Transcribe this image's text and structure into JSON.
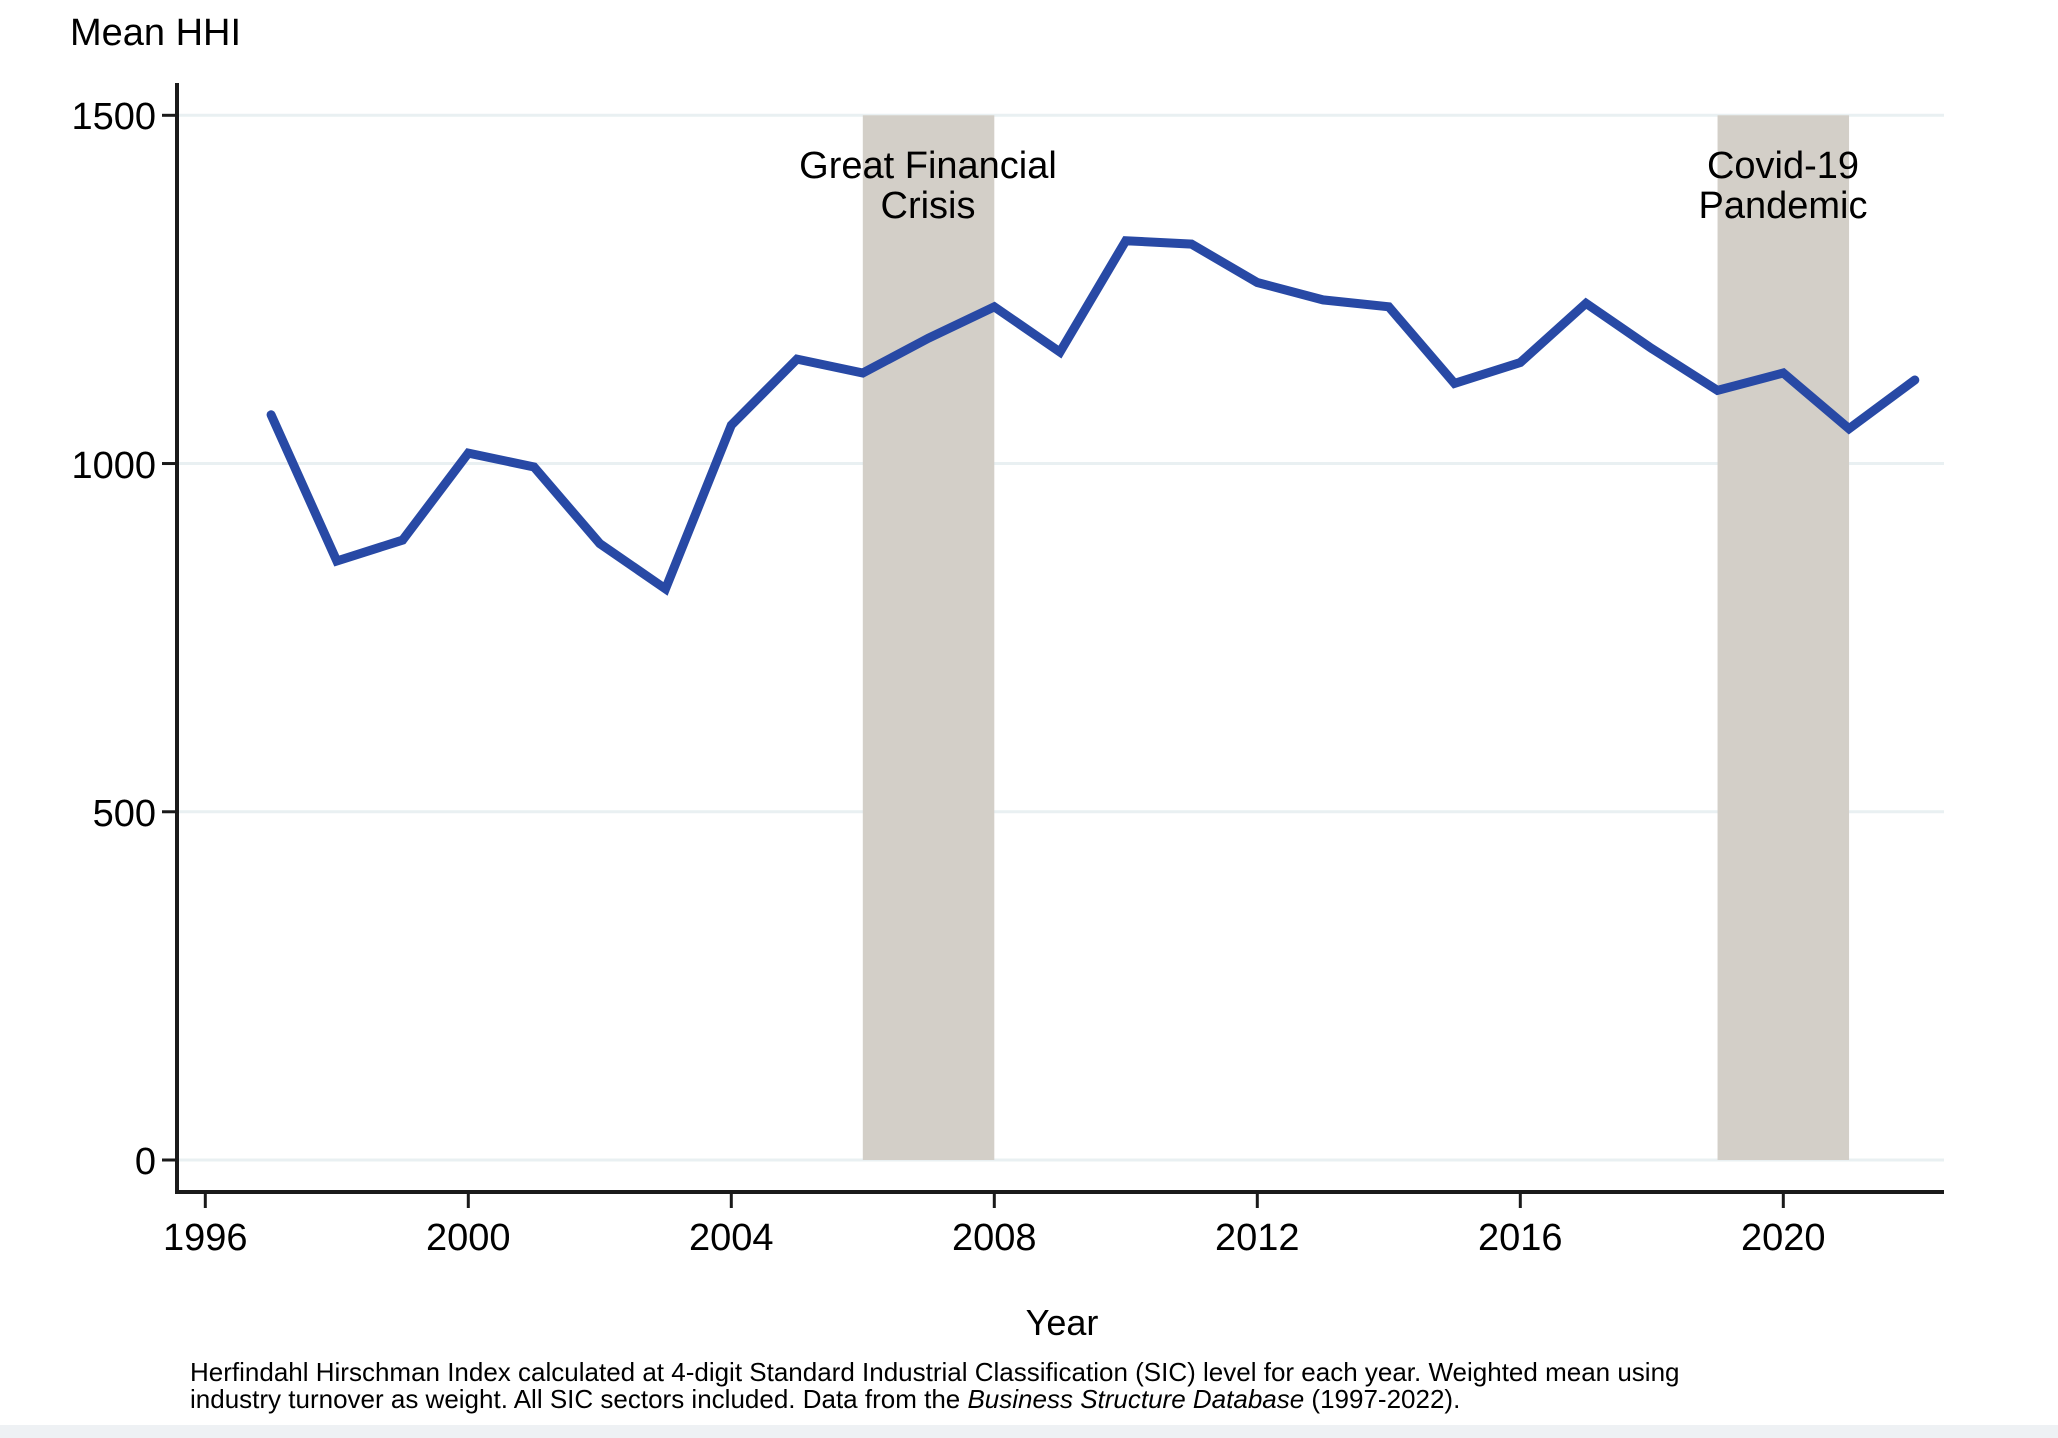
{
  "title": "Mean HHI",
  "axis": {
    "x_title": "Year"
  },
  "caption": {
    "line1": "Herfindahl Hirschman Index calculated at 4-digit Standard Industrial Classification (SIC) level for each year. Weighted mean using",
    "line2_pre": "industry turnover as weight. All SIC sectors included. Data from the ",
    "line2_italic": "Business Structure Database",
    "line2_post": " (1997-2022)."
  },
  "colors": {
    "line": "#2849a5",
    "grid": "#e9f0f2",
    "band": "#d3cfc8",
    "axis": "#1a1a1a"
  },
  "chart_data": {
    "type": "line",
    "title": "Mean HHI",
    "xlabel": "Year",
    "ylabel": "Mean HHI",
    "x": [
      1997,
      1998,
      1999,
      2000,
      2001,
      2002,
      2003,
      2004,
      2005,
      2006,
      2007,
      2008,
      2009,
      2010,
      2011,
      2012,
      2013,
      2014,
      2015,
      2016,
      2017,
      2018,
      2019,
      2020,
      2021,
      2022
    ],
    "values": [
      1070,
      860,
      890,
      1015,
      995,
      885,
      820,
      1055,
      1150,
      1130,
      1180,
      1225,
      1160,
      1320,
      1315,
      1260,
      1235,
      1225,
      1115,
      1145,
      1230,
      1165,
      1105,
      1130,
      1050,
      1120
    ],
    "x_ticks": [
      1996,
      2000,
      2004,
      2008,
      2012,
      2016,
      2020
    ],
    "y_ticks": [
      0,
      500,
      1000,
      1500
    ],
    "ylim": [
      0,
      1500
    ],
    "xlim": [
      1995.6,
      2022.4
    ],
    "grid": "horizontal",
    "legend": "none",
    "shaded_regions": [
      {
        "label": [
          "Great Financial",
          "Crisis"
        ],
        "from": 2006,
        "to": 2008
      },
      {
        "label": [
          "Covid-19",
          "Pandemic"
        ],
        "from": 2019,
        "to": 2021
      }
    ]
  }
}
